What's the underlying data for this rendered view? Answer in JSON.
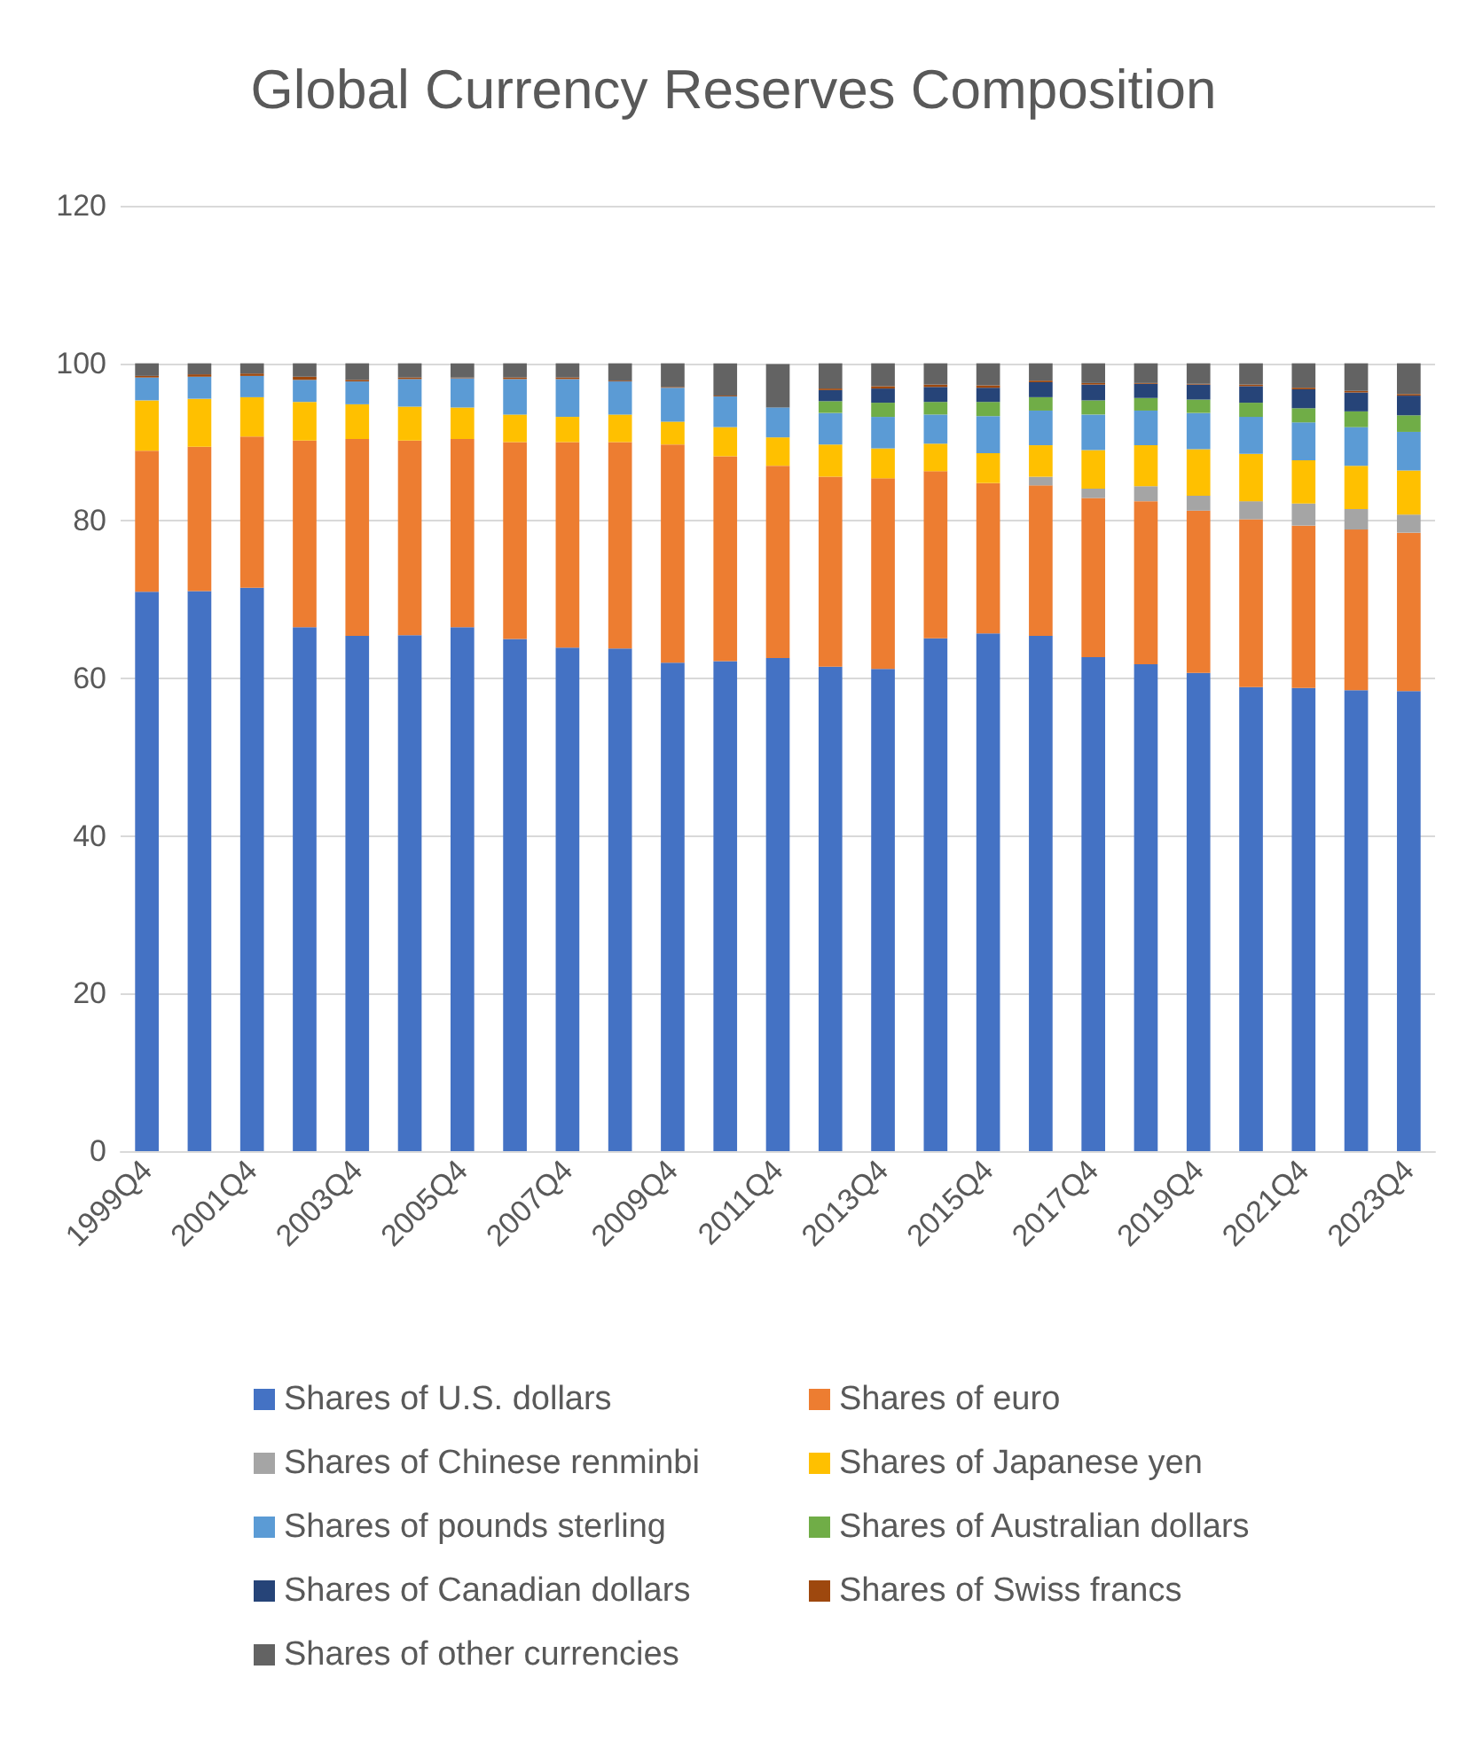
{
  "chart_data": {
    "type": "bar",
    "stacked": true,
    "title": "Global Currency Reserves Composition",
    "categories": [
      "1999Q4",
      null,
      "2001Q4",
      null,
      "2003Q4",
      null,
      "2005Q4",
      null,
      "2007Q4",
      null,
      "2009Q4",
      null,
      "2011Q4",
      null,
      "2013Q4",
      null,
      "2015Q4",
      null,
      "2017Q4",
      null,
      "2019Q4",
      null,
      "2021Q4",
      null,
      "2023Q4"
    ],
    "series": [
      {
        "name": "Shares of U.S. dollars",
        "color": "#4472c4",
        "values": [
          71.0,
          71.1,
          71.5,
          66.5,
          65.4,
          65.5,
          66.5,
          65.0,
          63.9,
          63.8,
          62.0,
          62.2,
          62.6,
          61.5,
          61.2,
          65.1,
          65.7,
          65.4,
          62.7,
          61.8,
          60.7,
          58.9,
          58.8,
          58.5,
          58.4
        ]
      },
      {
        "name": "Shares of euro",
        "color": "#ed7d31",
        "values": [
          17.9,
          18.3,
          19.2,
          23.7,
          25.0,
          24.7,
          23.9,
          25.0,
          26.1,
          26.2,
          27.7,
          26.0,
          24.4,
          24.1,
          24.2,
          21.2,
          19.1,
          19.1,
          20.2,
          20.7,
          20.6,
          21.3,
          20.6,
          20.4,
          20.1
        ]
      },
      {
        "name": "Shares of Chinese renminbi",
        "color": "#a5a5a5",
        "values": [
          null,
          null,
          null,
          null,
          null,
          null,
          null,
          null,
          null,
          null,
          null,
          null,
          null,
          null,
          null,
          null,
          null,
          1.1,
          1.2,
          1.9,
          1.9,
          2.3,
          2.8,
          2.6,
          2.3
        ]
      },
      {
        "name": "Shares of Japanese yen",
        "color": "#ffc000",
        "values": [
          6.4,
          6.1,
          5.0,
          4.9,
          4.4,
          4.3,
          4.0,
          3.5,
          3.2,
          3.5,
          2.9,
          3.7,
          3.6,
          4.1,
          3.8,
          3.5,
          3.8,
          4.0,
          4.9,
          5.2,
          5.9,
          6.0,
          5.5,
          5.5,
          5.6
        ]
      },
      {
        "name": "Shares of pounds sterling",
        "color": "#5b9bd5",
        "values": [
          2.9,
          2.8,
          2.7,
          2.8,
          2.9,
          3.5,
          3.7,
          4.5,
          4.8,
          4.2,
          4.3,
          3.9,
          3.8,
          4.0,
          4.0,
          3.7,
          4.7,
          4.4,
          4.5,
          4.4,
          4.6,
          4.7,
          4.8,
          4.9,
          4.9
        ]
      },
      {
        "name": "Shares of Australian dollars",
        "color": "#70ad47",
        "values": [
          null,
          null,
          null,
          null,
          null,
          null,
          null,
          null,
          null,
          null,
          null,
          null,
          null,
          1.5,
          1.8,
          1.6,
          1.8,
          1.7,
          1.8,
          1.6,
          1.7,
          1.8,
          1.8,
          2.0,
          2.1
        ]
      },
      {
        "name": "Shares of Canadian dollars",
        "color": "#264478",
        "values": [
          null,
          null,
          null,
          null,
          null,
          null,
          null,
          null,
          null,
          null,
          null,
          null,
          null,
          1.4,
          1.8,
          1.9,
          1.8,
          1.9,
          2.0,
          1.8,
          1.9,
          2.1,
          2.4,
          2.4,
          2.5
        ]
      },
      {
        "name": "Shares of Swiss francs",
        "color": "#9e480e",
        "values": [
          0.2,
          0.3,
          0.3,
          0.4,
          0.2,
          0.2,
          0.1,
          0.2,
          0.2,
          0.1,
          0.1,
          0.1,
          null,
          0.2,
          0.3,
          0.3,
          0.3,
          0.2,
          0.2,
          0.1,
          0.1,
          0.2,
          0.2,
          0.2,
          0.2
        ]
      },
      {
        "name": "Shares of other currencies",
        "color": "#636363",
        "values": [
          1.6,
          1.4,
          1.3,
          1.7,
          2.1,
          1.8,
          1.8,
          1.8,
          1.8,
          2.2,
          3.0,
          4.1,
          5.5,
          3.2,
          2.9,
          2.7,
          2.8,
          2.2,
          2.5,
          2.5,
          2.6,
          2.7,
          3.1,
          3.5,
          3.9
        ]
      }
    ],
    "ylim": [
      0,
      120
    ],
    "yticks": [
      0,
      20,
      40,
      60,
      80,
      100,
      120
    ],
    "grid": "y",
    "legend": "bottom"
  }
}
